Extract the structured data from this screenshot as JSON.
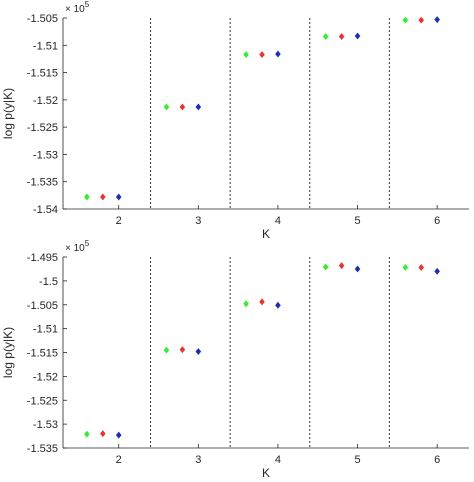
{
  "chart_data": [
    {
      "type": "scatter",
      "xlabel": "K",
      "ylabel": "log p(y|K)",
      "exponent_label": "× 10^5",
      "exponent_base": "× 10",
      "exponent_power": "5",
      "xlim": [
        1.3,
        6.4
      ],
      "ylim": [
        -1.54,
        -1.505
      ],
      "xticks": [
        2,
        3,
        4,
        5,
        6
      ],
      "xtick_labels": [
        "2",
        "3",
        "4",
        "5",
        "6"
      ],
      "yticks": [
        -1.54,
        -1.535,
        -1.53,
        -1.525,
        -1.52,
        -1.515,
        -1.51,
        -1.505
      ],
      "ytick_labels": [
        "-1.54",
        "-1.535",
        "-1.53",
        "-1.525",
        "-1.52",
        "-1.515",
        "-1.51",
        "-1.505"
      ],
      "separators": [
        2.4,
        3.4,
        4.4,
        5.4
      ],
      "series": [
        {
          "color": "#33ee33",
          "x": [
            1.6,
            2.6,
            3.6,
            4.6,
            5.6
          ],
          "y": [
            -1.5378,
            -1.5213,
            -1.5117,
            -1.5084,
            -1.5054
          ]
        },
        {
          "color": "#e83333",
          "x": [
            1.8,
            2.8,
            3.8,
            4.8,
            5.8
          ],
          "y": [
            -1.5378,
            -1.5213,
            -1.5117,
            -1.5084,
            -1.5054
          ]
        },
        {
          "color": "#1a2eb8",
          "x": [
            2.0,
            3.0,
            4.0,
            5.0,
            6.0
          ],
          "y": [
            -1.5378,
            -1.5213,
            -1.5116,
            -1.5083,
            -1.5053
          ]
        }
      ]
    },
    {
      "type": "scatter",
      "xlabel": "K",
      "ylabel": "log p(y|K)",
      "exponent_label": "× 10^5",
      "exponent_base": "× 10",
      "exponent_power": "5",
      "xlim": [
        1.3,
        6.4
      ],
      "ylim": [
        -1.535,
        -1.495
      ],
      "xticks": [
        2,
        3,
        4,
        5,
        6
      ],
      "xtick_labels": [
        "2",
        "3",
        "4",
        "5",
        "6"
      ],
      "yticks": [
        -1.535,
        -1.53,
        -1.525,
        -1.52,
        -1.515,
        -1.51,
        -1.505,
        -1.5,
        -1.495
      ],
      "ytick_labels": [
        "-1.535",
        "-1.53",
        "-1.525",
        "-1.52",
        "-1.515",
        "-1.51",
        "-1.505",
        "-1.5",
        "-1.495"
      ],
      "separators": [
        2.4,
        3.4,
        4.4,
        5.4
      ],
      "series": [
        {
          "color": "#33ee33",
          "x": [
            1.6,
            2.6,
            3.6,
            4.6,
            5.6
          ],
          "y": [
            -1.5321,
            -1.5145,
            -1.5048,
            -1.4971,
            -1.4972
          ]
        },
        {
          "color": "#e83333",
          "x": [
            1.8,
            2.8,
            3.8,
            4.8,
            5.8
          ],
          "y": [
            -1.532,
            -1.5144,
            -1.5044,
            -1.4968,
            -1.4972
          ]
        },
        {
          "color": "#1a2eb8",
          "x": [
            2.0,
            3.0,
            4.0,
            5.0,
            6.0
          ],
          "y": [
            -1.5323,
            -1.5148,
            -1.5051,
            -1.4975,
            -1.498
          ]
        }
      ]
    }
  ]
}
